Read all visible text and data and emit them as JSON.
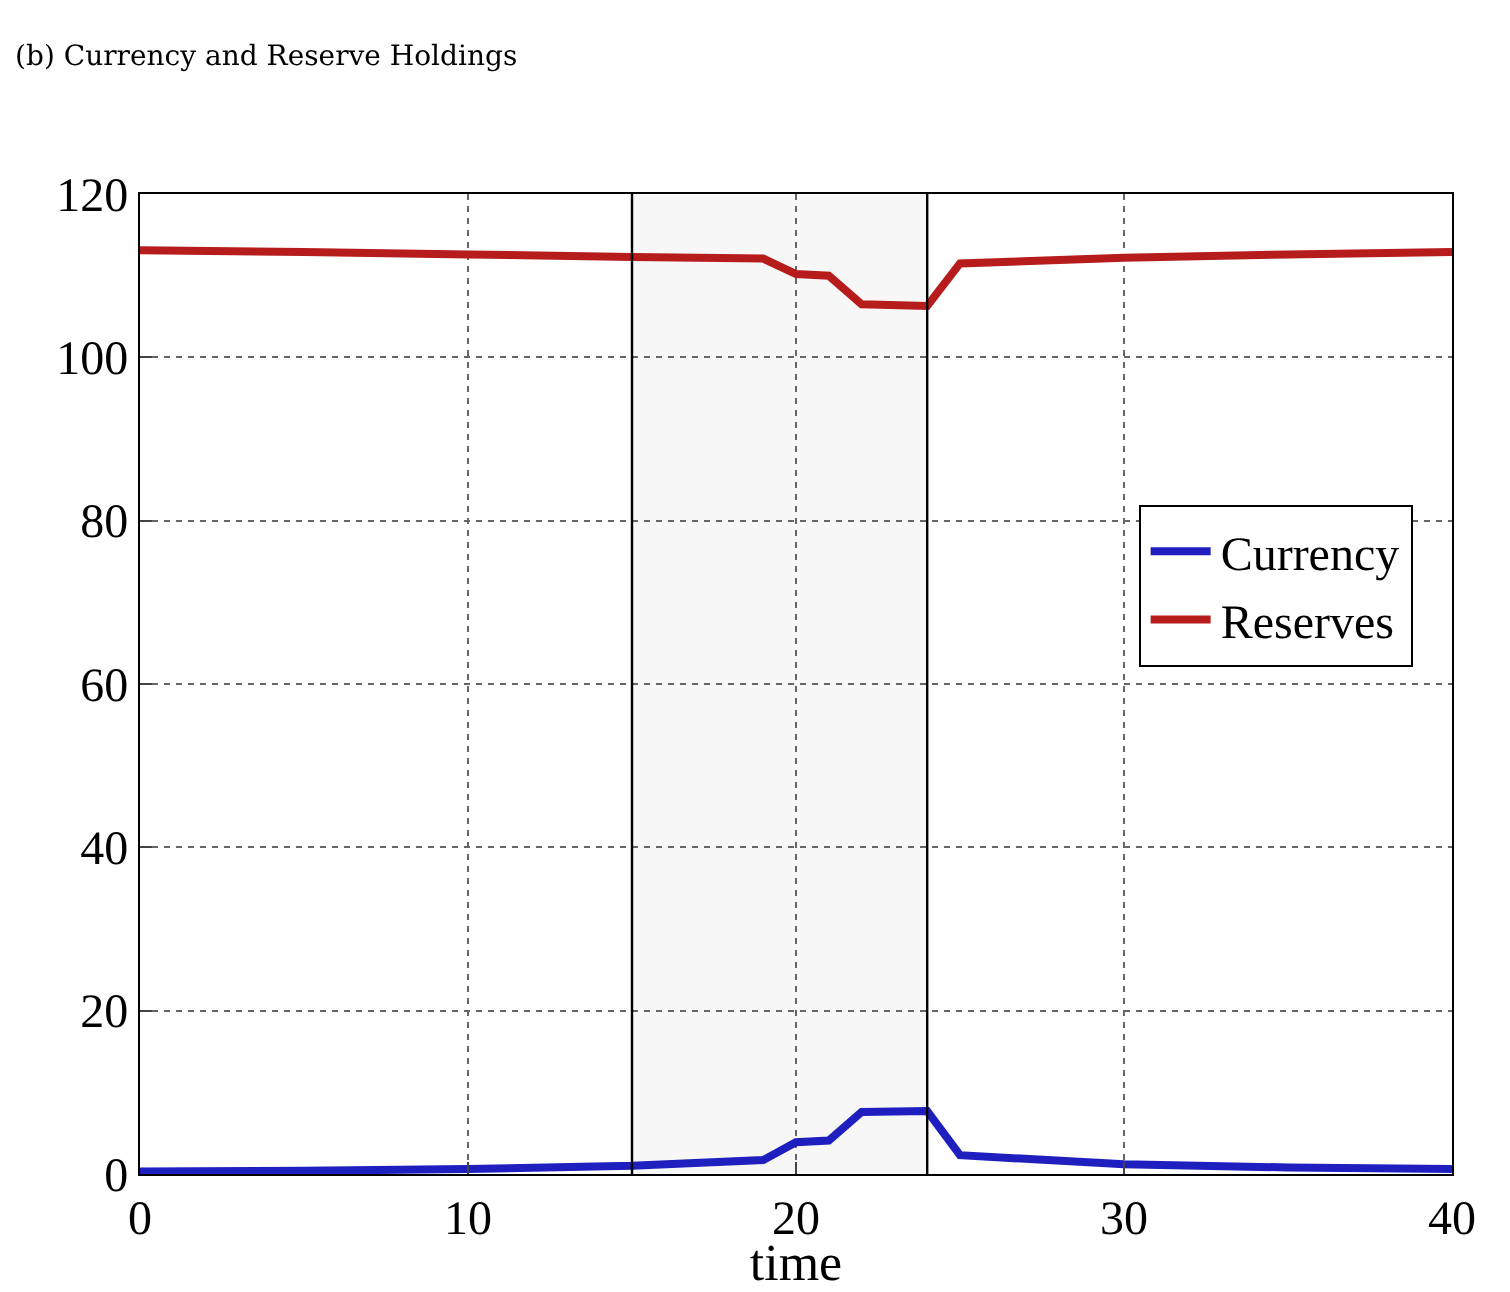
{
  "chart_data": {
    "type": "line",
    "title": "(b) Currency and Reserve Holdings",
    "xlabel": "time",
    "x": [
      0,
      5,
      10,
      15,
      19,
      20,
      21,
      22,
      24,
      25,
      30,
      35,
      40
    ],
    "series": [
      {
        "name": "Currency",
        "color": "#1f1fbf",
        "values": [
          0.3,
          0.4,
          0.6,
          1.0,
          1.7,
          3.9,
          4.1,
          7.6,
          7.7,
          2.3,
          1.2,
          0.8,
          0.6
        ]
      },
      {
        "name": "Reserves",
        "color": "#b71c1c",
        "values": [
          113.1,
          112.9,
          112.6,
          112.3,
          112.1,
          110.2,
          110.0,
          106.5,
          106.3,
          111.5,
          112.2,
          112.6,
          112.9
        ]
      }
    ],
    "xlim": [
      0,
      40
    ],
    "xticks": [
      0,
      10,
      20,
      30,
      40
    ],
    "ylim": [
      0,
      120
    ],
    "yticks": [
      0,
      20,
      40,
      60,
      80,
      100,
      120
    ],
    "bands": [
      {
        "axis": "x",
        "from": 15,
        "to": 24,
        "color": "#f7f7f7"
      }
    ],
    "ref_lines": [
      {
        "axis": "x",
        "value": 15,
        "color": "#000000",
        "line_style": "solid"
      },
      {
        "axis": "x",
        "value": 24,
        "color": "#000000",
        "line_style": "solid"
      }
    ],
    "grid": true,
    "legend": "right",
    "line_style": "solid",
    "marker": "none"
  }
}
